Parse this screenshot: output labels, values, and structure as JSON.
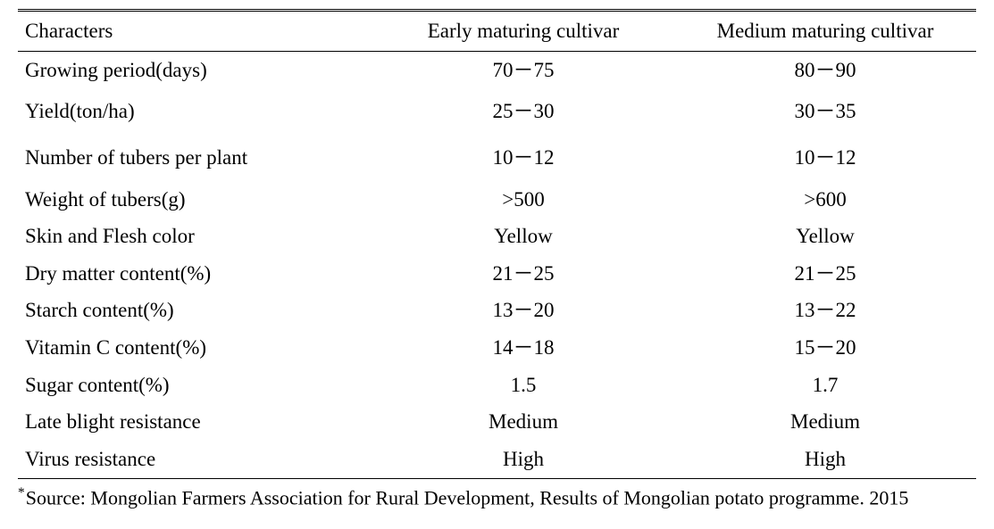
{
  "table": {
    "columns": [
      "Characters",
      "Early maturing cultivar",
      "Medium maturing cultivar"
    ],
    "column_align": [
      "left",
      "center",
      "center"
    ],
    "column_widths_pct": [
      37,
      31.5,
      31.5
    ],
    "border_top": "3px double #000000",
    "header_border_bottom": "1px solid #000000",
    "bottom_border": "1px solid #000000",
    "font_family": "Times New Roman",
    "font_size_pt": 17,
    "text_color": "#000000",
    "background_color": "#ffffff",
    "rows": [
      {
        "c": [
          "Growing period(days)",
          "70－75",
          "80－90"
        ],
        "space_after": false
      },
      {
        "c": [
          "Yield(ton/ha)",
          "25－30",
          "30－35"
        ],
        "space_after": true
      },
      {
        "c": [
          "Number of tubers per plant",
          "10－12",
          "10－12"
        ],
        "space_after": true
      },
      {
        "c": [
          "Weight of tubers(g)",
          ">500",
          ">600"
        ],
        "space_after": false
      },
      {
        "c": [
          "Skin and Flesh color",
          "Yellow",
          "Yellow"
        ],
        "space_after": false
      },
      {
        "c": [
          "Dry matter content(%)",
          "21－25",
          "21－25"
        ],
        "space_after": false
      },
      {
        "c": [
          "Starch content(%)",
          "13－20",
          "13－22"
        ],
        "space_after": false
      },
      {
        "c": [
          "Vitamin C content(%)",
          "14－18",
          "15－20"
        ],
        "space_after": false
      },
      {
        "c": [
          "Sugar content(%)",
          "1.5",
          "1.7"
        ],
        "space_after": false
      },
      {
        "c": [
          "Late blight resistance",
          "Medium",
          "Medium"
        ],
        "space_after": false
      },
      {
        "c": [
          "Virus resistance",
          "High",
          "High"
        ],
        "space_after": false
      }
    ]
  },
  "footnote": {
    "marker": "*",
    "text": "Source: Mongolian Farmers Association for Rural Development, Results of Mongolian potato programme. 2015",
    "font_size_pt": 16
  }
}
